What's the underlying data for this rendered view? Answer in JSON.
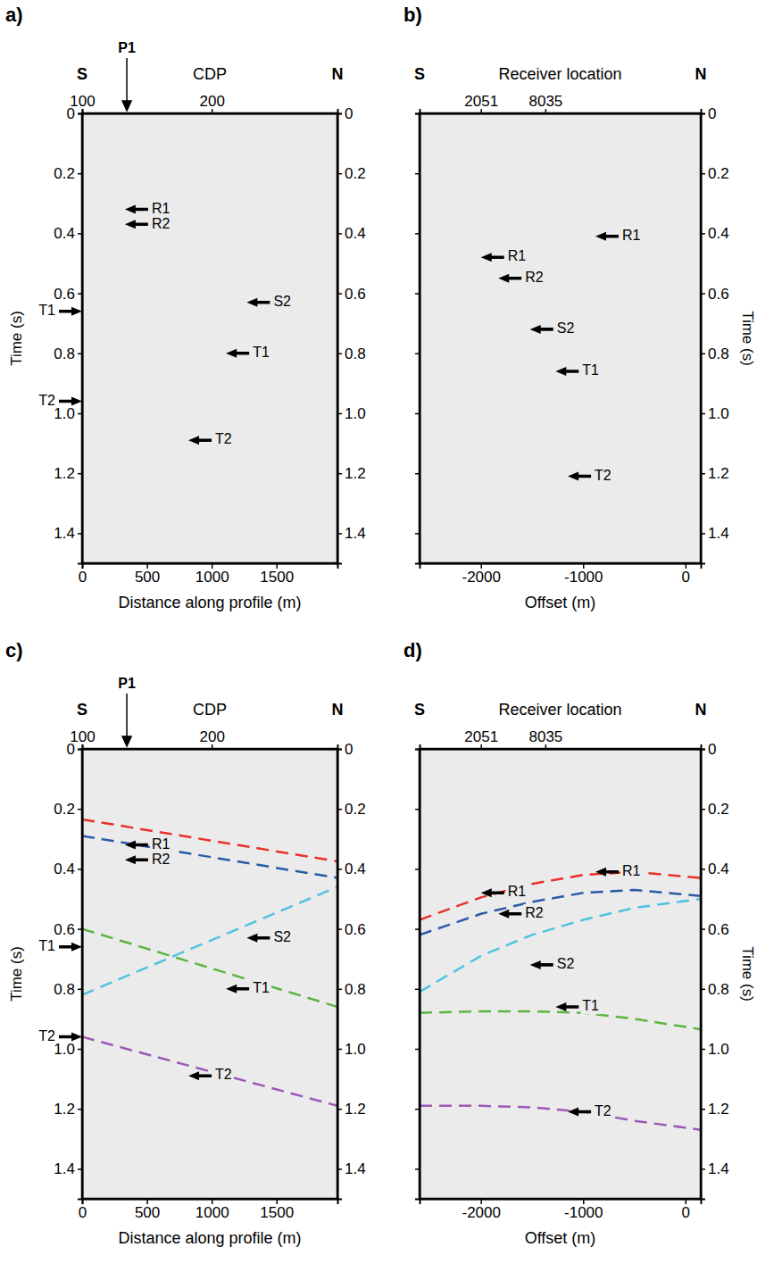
{
  "chart_data": [
    {
      "type": "line",
      "panel": "a)",
      "direction_labels": [
        "S",
        "N"
      ],
      "x_label": "Distance along profile (m)",
      "y_label": "Time (s)",
      "x2_label": "CDP",
      "xlim": [
        0,
        1970
      ],
      "xticks": [
        0,
        500,
        1000,
        1500
      ],
      "x2ticks": [
        {
          "value": 0,
          "label": "100"
        },
        {
          "value": 1000,
          "label": "200"
        }
      ],
      "ylim": [
        0,
        1.5
      ],
      "yticks": [
        0,
        0.2,
        0.4,
        0.6,
        0.8,
        {
          "value": 1,
          "label": "1.0"
        },
        1.2,
        1.4
      ],
      "marker_label": {
        "text": "P1",
        "x": 345
      },
      "annotations": [
        {
          "text": "R1",
          "x": 330,
          "t": 0.32
        },
        {
          "text": "R2",
          "x": 330,
          "t": 0.37
        },
        {
          "text": "T1",
          "x": 0,
          "t": 0.66
        },
        {
          "text": "S2",
          "x": 1270,
          "t": 0.63
        },
        {
          "text": "T1",
          "x": 1110,
          "t": 0.8
        },
        {
          "text": "T2",
          "x": 0,
          "t": 0.96
        },
        {
          "text": "T2",
          "x": 820,
          "t": 1.09
        }
      ]
    },
    {
      "type": "line",
      "panel": "b)",
      "direction_labels": [
        "S",
        "N"
      ],
      "x_label": "Offset (m)",
      "y_label": "Time (s)",
      "x2_label": "Receiver location",
      "xlim": [
        -2600,
        150
      ],
      "xticks": [
        -2000,
        -1000,
        0
      ],
      "x2ticks": [
        {
          "value": -2000,
          "label": "2051"
        },
        {
          "value": -1370,
          "label": "8035"
        }
      ],
      "ylim": [
        0,
        1.5
      ],
      "yticks": [
        0,
        0.2,
        0.4,
        0.6,
        0.8,
        {
          "value": 1,
          "label": "1.0"
        },
        1.2,
        1.4
      ],
      "annotations": [
        {
          "text": "R1",
          "x": -880,
          "t": 0.41
        },
        {
          "text": "R1",
          "x": -2000,
          "t": 0.48
        },
        {
          "text": "R2",
          "x": -1830,
          "t": 0.55
        },
        {
          "text": "S2",
          "x": -1520,
          "t": 0.72
        },
        {
          "text": "T1",
          "x": -1270,
          "t": 0.86
        },
        {
          "text": "T2",
          "x": -1150,
          "t": 1.21
        }
      ]
    },
    {
      "type": "line",
      "panel": "c)",
      "direction_labels": [
        "S",
        "N"
      ],
      "x_label": "Distance along profile (m)",
      "y_label": "Time (s)",
      "x2_label": "CDP",
      "xlim": [
        0,
        1970
      ],
      "xticks": [
        0,
        500,
        1000,
        1500
      ],
      "x2ticks": [
        {
          "value": 0,
          "label": "100"
        },
        {
          "value": 1000,
          "label": "200"
        }
      ],
      "ylim": [
        0,
        1.5
      ],
      "yticks": [
        0,
        0.2,
        0.4,
        0.6,
        0.8,
        {
          "value": 1,
          "label": "1.0"
        },
        1.2,
        1.4
      ],
      "marker_label": {
        "text": "P1",
        "x": 345
      },
      "series": [
        {
          "color": "#e8312a",
          "line_style": "dashed",
          "x": [
            0,
            1970
          ],
          "values": [
            0.235,
            0.375
          ]
        },
        {
          "color": "#2a5aa8",
          "line_style": "dashed",
          "x": [
            0,
            1970
          ],
          "values": [
            0.29,
            0.43
          ]
        },
        {
          "color": "#4fc3e0",
          "line_style": "dashed",
          "x": [
            0,
            1970
          ],
          "values": [
            0.82,
            0.46
          ]
        },
        {
          "color": "#5bb540",
          "line_style": "dashed",
          "x": [
            0,
            1970
          ],
          "values": [
            0.6,
            0.86
          ]
        },
        {
          "color": "#9b59b6",
          "line_style": "dashed",
          "x": [
            0,
            1970
          ],
          "values": [
            0.96,
            1.19
          ]
        }
      ],
      "annotations": [
        {
          "text": "R1",
          "x": 330,
          "t": 0.32
        },
        {
          "text": "R2",
          "x": 330,
          "t": 0.37
        },
        {
          "text": "T1",
          "x": 0,
          "t": 0.66
        },
        {
          "text": "S2",
          "x": 1270,
          "t": 0.63
        },
        {
          "text": "T1",
          "x": 1110,
          "t": 0.8
        },
        {
          "text": "T2",
          "x": 0,
          "t": 0.96
        },
        {
          "text": "T2",
          "x": 820,
          "t": 1.09
        }
      ]
    },
    {
      "type": "line",
      "panel": "d)",
      "direction_labels": [
        "S",
        "N"
      ],
      "x_label": "Offset (m)",
      "y_label": "Time (s)",
      "x2_label": "Receiver location",
      "xlim": [
        -2600,
        150
      ],
      "xticks": [
        -2000,
        -1000,
        0
      ],
      "x2ticks": [
        {
          "value": -2000,
          "label": "2051"
        },
        {
          "value": -1370,
          "label": "8035"
        }
      ],
      "ylim": [
        0,
        1.5
      ],
      "yticks": [
        0,
        0.2,
        0.4,
        0.6,
        0.8,
        {
          "value": 1,
          "label": "1.0"
        },
        1.2,
        1.4
      ],
      "series": [
        {
          "color": "#e8312a",
          "line_style": "dashed",
          "x": [
            -2600,
            -2000,
            -1500,
            -1000,
            -500,
            150
          ],
          "values": [
            0.57,
            0.495,
            0.45,
            0.42,
            0.41,
            0.43
          ]
        },
        {
          "color": "#2a5aa8",
          "line_style": "dashed",
          "x": [
            -2600,
            -2000,
            -1500,
            -1000,
            -500,
            150
          ],
          "values": [
            0.62,
            0.55,
            0.51,
            0.48,
            0.47,
            0.49
          ]
        },
        {
          "color": "#4fc3e0",
          "line_style": "dashed",
          "x": [
            -2600,
            -2000,
            -1500,
            -1000,
            -500,
            150
          ],
          "values": [
            0.81,
            0.69,
            0.62,
            0.57,
            0.53,
            0.5
          ]
        },
        {
          "color": "#5bb540",
          "line_style": "dashed",
          "x": [
            -2600,
            -2000,
            -1500,
            -1000,
            -500,
            150
          ],
          "values": [
            0.88,
            0.875,
            0.875,
            0.88,
            0.9,
            0.935
          ]
        },
        {
          "color": "#9b59b6",
          "line_style": "dashed",
          "x": [
            -2600,
            -2000,
            -1500,
            -1000,
            -500,
            150
          ],
          "values": [
            1.19,
            1.19,
            1.195,
            1.21,
            1.24,
            1.27
          ]
        }
      ],
      "annotations": [
        {
          "text": "R1",
          "x": -880,
          "t": 0.41
        },
        {
          "text": "R1",
          "x": -2000,
          "t": 0.48
        },
        {
          "text": "R2",
          "x": -1830,
          "t": 0.55
        },
        {
          "text": "S2",
          "x": -1520,
          "t": 0.72
        },
        {
          "text": "T1",
          "x": -1270,
          "t": 0.86
        },
        {
          "text": "T2",
          "x": -1150,
          "t": 1.21
        }
      ]
    }
  ]
}
